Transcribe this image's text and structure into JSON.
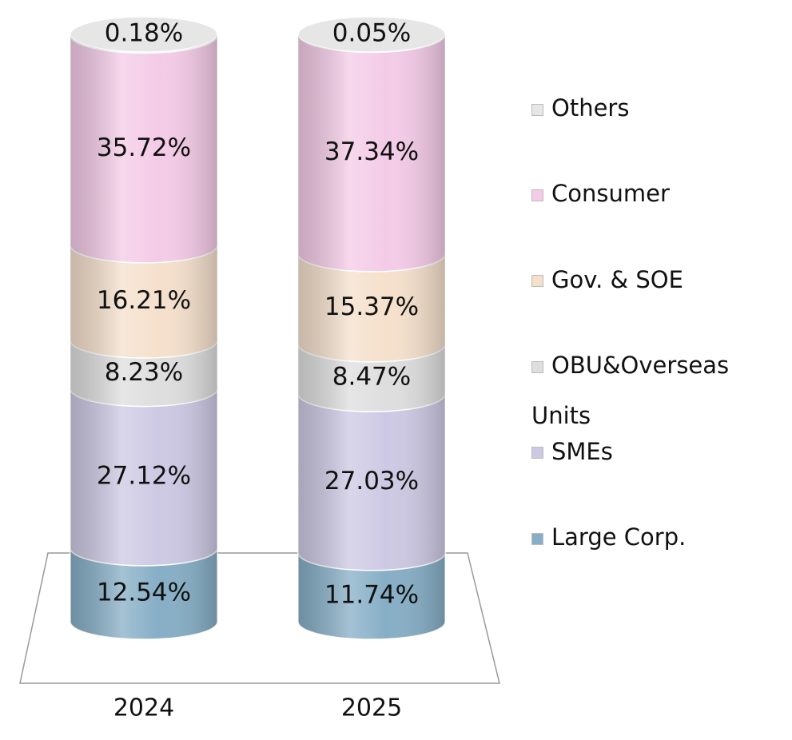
{
  "chart_data": {
    "type": "bar",
    "stacked": true,
    "categories": [
      "2024",
      "2025"
    ],
    "series": [
      {
        "name": "Large Corp.",
        "color": "#86aec6",
        "values": [
          12.54,
          11.74
        ],
        "value_labels": [
          "12.54%",
          "11.74%"
        ]
      },
      {
        "name": "SMEs",
        "color": "#cdc9e4",
        "values": [
          27.12,
          27.03
        ],
        "value_labels": [
          "27.12%",
          "27.03%"
        ]
      },
      {
        "name": "OBU&Overseas Units",
        "color": "#dedede",
        "values": [
          8.23,
          8.47
        ],
        "value_labels": [
          "8.23%",
          "8.47%"
        ]
      },
      {
        "name": "Gov. & SOE",
        "color": "#f5e0cc",
        "values": [
          16.21,
          15.37
        ],
        "value_labels": [
          "16.21%",
          "15.37%"
        ]
      },
      {
        "name": "Consumer",
        "color": "#f4cbe7",
        "values": [
          35.72,
          37.34
        ],
        "value_labels": [
          "35.72%",
          "37.34%"
        ]
      },
      {
        "name": "Others",
        "color": "#e6e6e6",
        "values": [
          0.18,
          0.05
        ],
        "value_labels": [
          "0.18%",
          "0.05%"
        ]
      }
    ]
  }
}
